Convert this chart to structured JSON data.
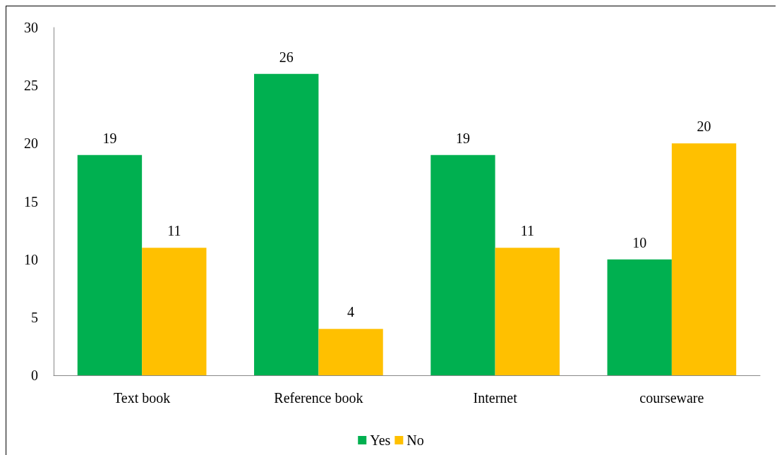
{
  "chart_data": {
    "type": "bar",
    "categories": [
      "Text book",
      "Reference book",
      "Internet",
      "courseware"
    ],
    "series": [
      {
        "name": "Yes",
        "color": "#00b050",
        "values": [
          19,
          26,
          19,
          10
        ]
      },
      {
        "name": "No",
        "color": "#ffc000",
        "values": [
          11,
          4,
          11,
          20
        ]
      }
    ],
    "ylim": [
      0,
      30
    ],
    "yticks": [
      0,
      5,
      10,
      15,
      20,
      25,
      30
    ],
    "grid": false,
    "legend": "bottom",
    "data_labels": true
  }
}
